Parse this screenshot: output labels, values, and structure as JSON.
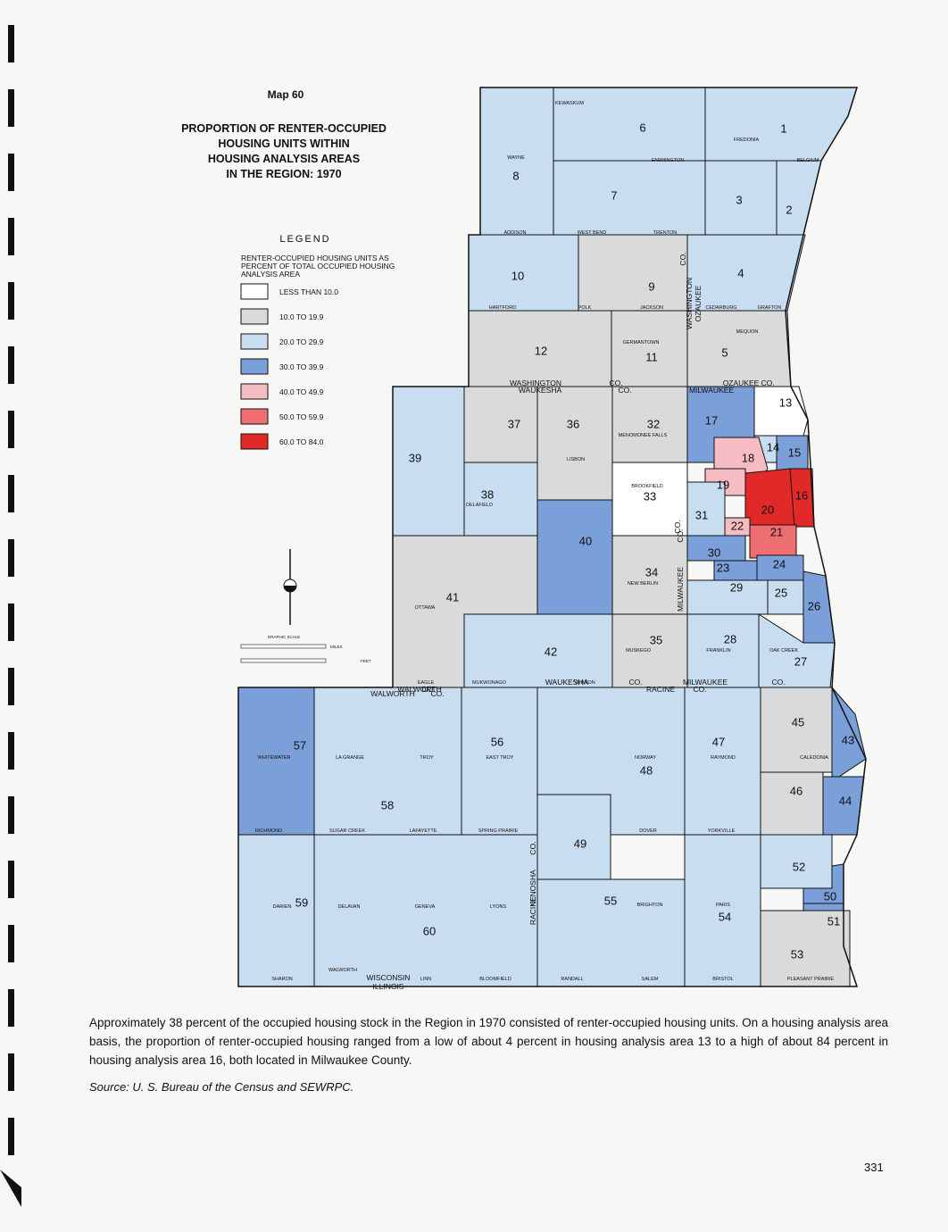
{
  "header": {
    "map_number": "Map 60",
    "title_lines": [
      "PROPORTION OF RENTER-OCCUPIED",
      "HOUSING UNITS WITHIN",
      "HOUSING ANALYSIS AREAS",
      "IN THE REGION: 1970"
    ]
  },
  "legend": {
    "title": "LEGEND",
    "subtitle_lines": [
      "RENTER-OCCUPIED HOUSING UNITS AS",
      "PERCENT OF TOTAL OCCUPIED HOUSING",
      "ANALYSIS AREA"
    ],
    "classes": [
      {
        "label": "LESS THAN 10.0",
        "color": "#ffffff"
      },
      {
        "label": "10.0 TO 19.9",
        "color": "#d9dadc"
      },
      {
        "label": "20.0 TO 29.9",
        "color": "#c9ddf1"
      },
      {
        "label": "30.0 TO 39.9",
        "color": "#7b9fd9"
      },
      {
        "label": "40.0 TO 49.9",
        "color": "#f5bcc4"
      },
      {
        "label": "50.0 TO 59.9",
        "color": "#ee6e72"
      },
      {
        "label": "60.0 TO 84.0",
        "color": "#e12a28"
      }
    ]
  },
  "scale": {
    "title": "GRAPHIC SCALE",
    "miles_label": "MILES",
    "feet_label": "FEET"
  },
  "areas": [
    {
      "label": "1",
      "class": 2
    },
    {
      "label": "2",
      "class": 2
    },
    {
      "label": "3",
      "class": 2
    },
    {
      "label": "4",
      "class": 2
    },
    {
      "label": "5",
      "class": 1
    },
    {
      "label": "6",
      "class": 2
    },
    {
      "label": "7",
      "class": 2
    },
    {
      "label": "8",
      "class": 2
    },
    {
      "label": "9",
      "class": 1
    },
    {
      "label": "10",
      "class": 2
    },
    {
      "label": "11",
      "class": 1
    },
    {
      "label": "12",
      "class": 1
    },
    {
      "label": "13",
      "class": 0
    },
    {
      "label": "14",
      "class": 2
    },
    {
      "label": "15",
      "class": 3
    },
    {
      "label": "16",
      "class": 6
    },
    {
      "label": "17",
      "class": 3
    },
    {
      "label": "18",
      "class": 4
    },
    {
      "label": "19",
      "class": 4
    },
    {
      "label": "20",
      "class": 6
    },
    {
      "label": "21",
      "class": 5
    },
    {
      "label": "22",
      "class": 4
    },
    {
      "label": "23",
      "class": 3
    },
    {
      "label": "24",
      "class": 3
    },
    {
      "label": "25",
      "class": 2
    },
    {
      "label": "26",
      "class": 3
    },
    {
      "label": "27",
      "class": 2
    },
    {
      "label": "28",
      "class": 2
    },
    {
      "label": "29",
      "class": 2
    },
    {
      "label": "30",
      "class": 3
    },
    {
      "label": "31",
      "class": 2
    },
    {
      "label": "32",
      "class": 1
    },
    {
      "label": "33",
      "class": 0
    },
    {
      "label": "34",
      "class": 1
    },
    {
      "label": "35",
      "class": 1
    },
    {
      "label": "36",
      "class": 1
    },
    {
      "label": "37",
      "class": 1
    },
    {
      "label": "38",
      "class": 2
    },
    {
      "label": "39",
      "class": 2
    },
    {
      "label": "40",
      "class": 3
    },
    {
      "label": "41",
      "class": 1
    },
    {
      "label": "42",
      "class": 2
    },
    {
      "label": "43",
      "class": 3
    },
    {
      "label": "44",
      "class": 3
    },
    {
      "label": "45",
      "class": 1
    },
    {
      "label": "46",
      "class": 1
    },
    {
      "label": "47",
      "class": 2
    },
    {
      "label": "48",
      "class": 2
    },
    {
      "label": "49",
      "class": 2
    },
    {
      "label": "50",
      "class": 3
    },
    {
      "label": "51",
      "class": 3
    },
    {
      "label": "52",
      "class": 2
    },
    {
      "label": "53",
      "class": 1
    },
    {
      "label": "54",
      "class": 2
    },
    {
      "label": "55",
      "class": 2
    },
    {
      "label": "56",
      "class": 2
    },
    {
      "label": "57",
      "class": 3
    },
    {
      "label": "58",
      "class": 2
    },
    {
      "label": "59",
      "class": 2
    },
    {
      "label": "60",
      "class": 2
    }
  ],
  "county_labels": [
    "WASHINGTON",
    "CO.",
    "WAUKESHA",
    "OZAUKEE",
    "CO.",
    "MILWAUKEE",
    "CO.",
    "WALWORTH",
    "CO.",
    "WAUKESHA",
    "CO.",
    "RACINE",
    "CO.",
    "MILWAUKEE",
    "CO.",
    "WISCONSIN",
    "ILLINOIS",
    "WALWORTH",
    "CO.",
    "KENOSHA",
    "CO.",
    "RACINE",
    "WASHINGTON",
    "CO.",
    "OZAUKEE",
    "CO.",
    "MILWAUKEE",
    "CO."
  ],
  "place_names": [
    "KEWASKUM",
    "WAYNE",
    "FARMINGTON",
    "FREDONIA",
    "BELGIUM",
    "ADDISON",
    "WEST BEND",
    "TRENTON",
    "HARTFORD",
    "POLK",
    "JACKSON",
    "CEDARBURG",
    "GRAFTON",
    "MEQUON",
    "GERMANTOWN",
    "LISBON",
    "MENOMONEE FALLS",
    "BROOKFIELD",
    "DELAFIELD",
    "NEW BERLIN",
    "OTTAWA",
    "EAGLE",
    "MUKWONAGO",
    "VERNON",
    "MUSKEGO",
    "FRANKLIN",
    "OAK CREEK",
    "WHITEWATER",
    "LA GRANGE",
    "TROY",
    "EAST TROY",
    "NORWAY",
    "RAYMOND",
    "CALEDONIA",
    "RICHMOND",
    "SUGAR CREEK",
    "LAFAYETTE",
    "SPRING PRAIRIE",
    "DOVER",
    "YORKVILLE",
    "DARIEN",
    "DELAVAN",
    "GENEVA",
    "LYONS",
    "BRIGHTON",
    "PARIS",
    "SHARON",
    "WALWORTH",
    "LINN",
    "BLOOMFIELD",
    "RANDALL",
    "SALEM",
    "BRISTOL",
    "PLEASANT PRAIRIE"
  ],
  "caption": "Approximately 38 percent of the occupied housing stock in the Region in 1970 consisted of renter-occupied housing units. On a housing analysis area basis, the proportion of renter-occupied housing ranged from a low of about 4 percent in housing analysis area 13 to a high of about 84 percent in housing analysis area 16, both located in Milwaukee County.",
  "source": "Source:  U. S. Bureau of the Census and SEWRPC.",
  "page_number": "331"
}
